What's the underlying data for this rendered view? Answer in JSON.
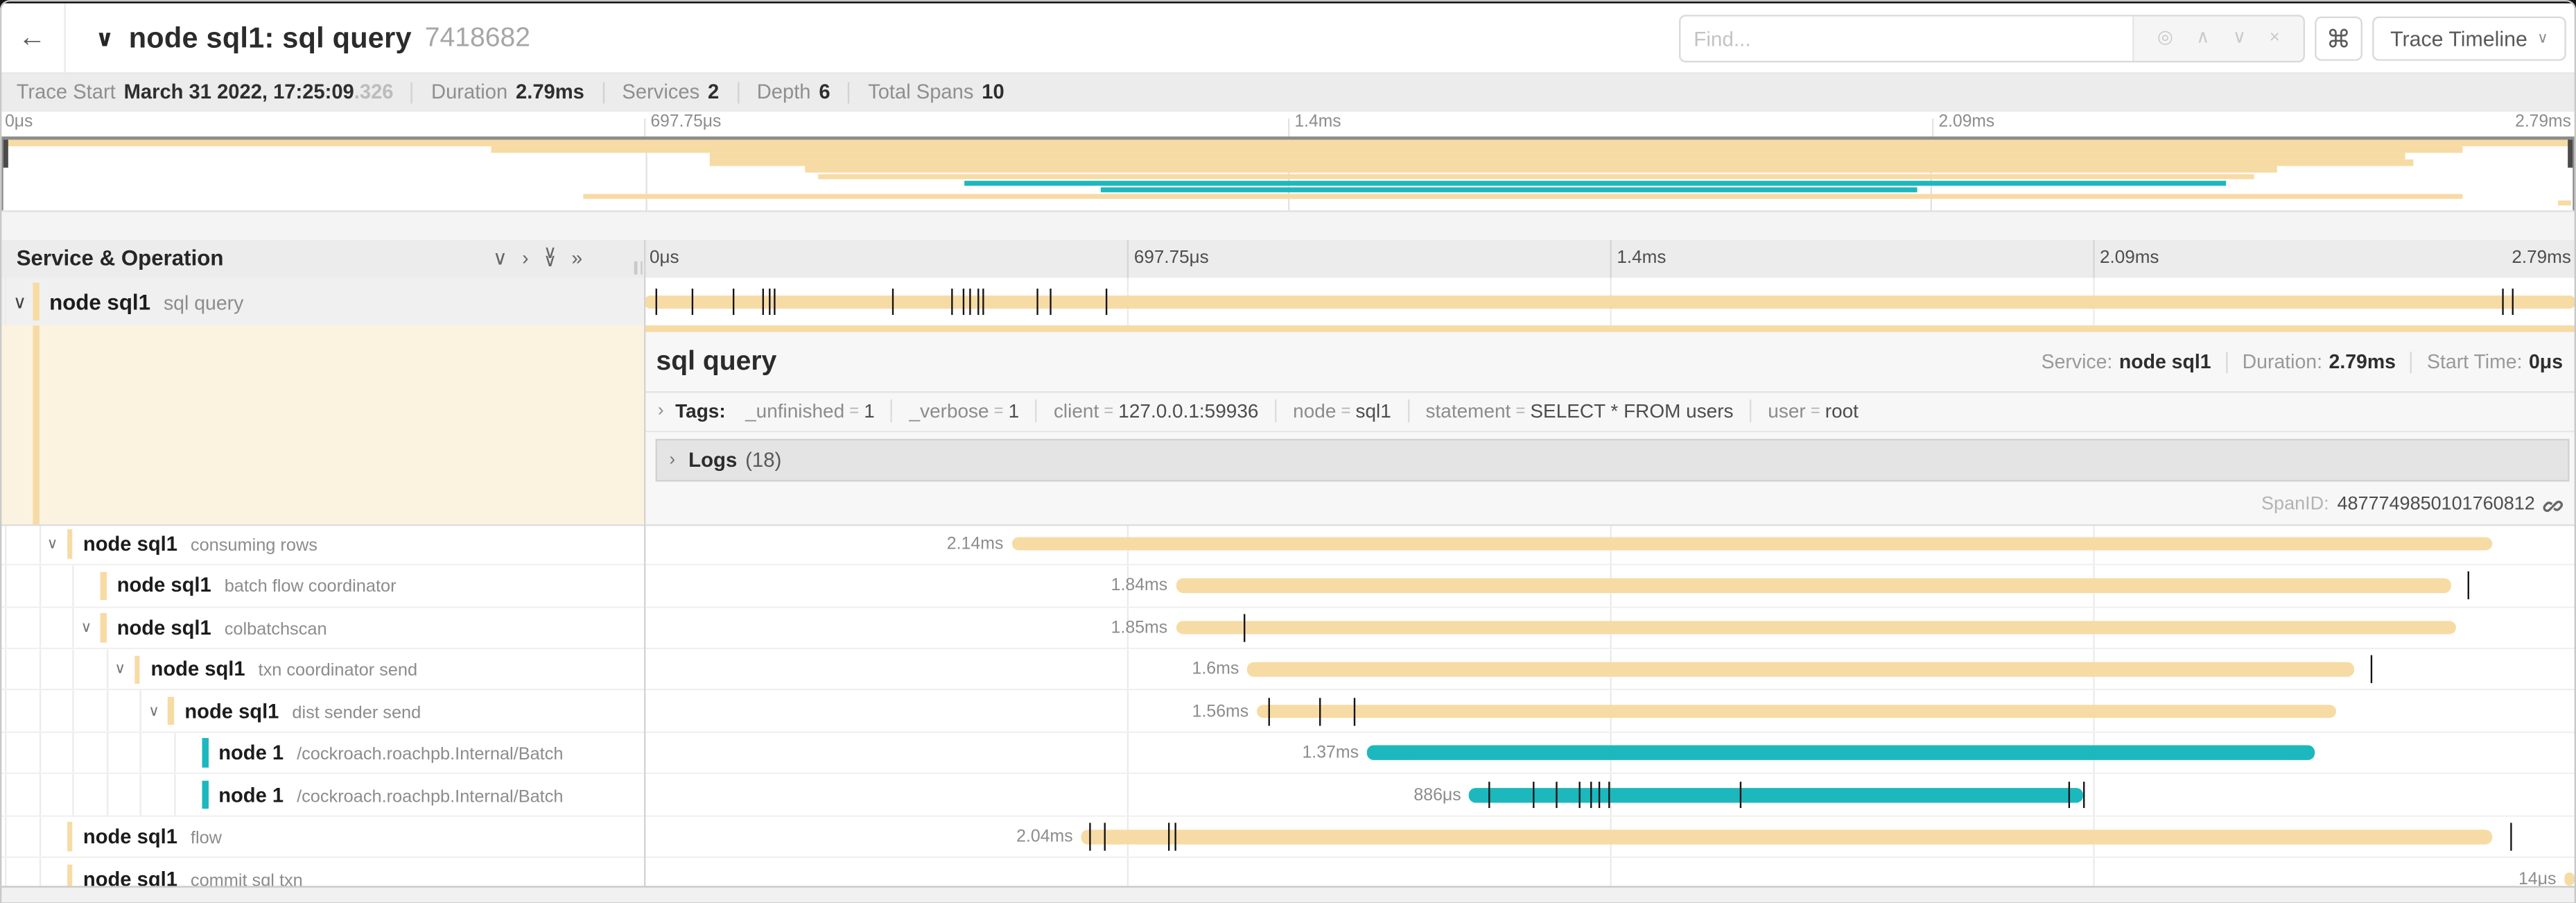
{
  "colors": {
    "tan": "#F7DBA4",
    "teal": "#1CB8BE",
    "selected_row_bg": "#F0F0F0",
    "detail_left_bg": "#FBF3DF",
    "detail_right_bg": "#F7F7F7"
  },
  "header": {
    "back_glyph": "←",
    "chevron_glyph": "∨",
    "title": "node sql1: sql query",
    "trace_id": "7418682",
    "shortcut_glyph": "⌘",
    "view_button_label": "Trace Timeline",
    "view_caret_glyph": "∨"
  },
  "find": {
    "placeholder": "Find...",
    "icons": [
      {
        "name": "locate-icon",
        "glyph": "◎"
      },
      {
        "name": "prev-result-icon",
        "glyph": "∧"
      },
      {
        "name": "next-result-icon",
        "glyph": "∨"
      },
      {
        "name": "clear-search-icon",
        "glyph": "×"
      }
    ]
  },
  "trace_info": {
    "items": [
      {
        "label": "Trace Start",
        "value": "March 31 2022, 17:25:09",
        "suffix": ".326"
      },
      {
        "label": "Duration",
        "value": "2.79ms"
      },
      {
        "label": "Services",
        "value": "2"
      },
      {
        "label": "Depth",
        "value": "6"
      },
      {
        "label": "Total Spans",
        "value": "10"
      }
    ]
  },
  "timeline": {
    "ticks": [
      {
        "pct": 0,
        "label": "0μs"
      },
      {
        "pct": 25,
        "label": "697.75μs"
      },
      {
        "pct": 50,
        "label": "1.4ms"
      },
      {
        "pct": 75,
        "label": "2.09ms"
      },
      {
        "pct": 100,
        "label": "2.79ms"
      }
    ]
  },
  "grid_header": {
    "title": "Service & Operation",
    "icons": [
      {
        "name": "expand-one-icon",
        "glyph": "∨"
      },
      {
        "name": "collapse-one-icon",
        "glyph": "›"
      },
      {
        "name": "expand-all-icon",
        "glyph": "∨∨"
      },
      {
        "name": "collapse-all-icon",
        "glyph": "»"
      }
    ]
  },
  "spans": [
    {
      "service": "node sql1",
      "operation": "sql query",
      "level": 0,
      "expandable": true,
      "color": "tan",
      "start": 0,
      "width": 100,
      "duration_label": "",
      "selected": true,
      "ticks": [
        0.6,
        2.4,
        4.6,
        6.1,
        6.4,
        6.7,
        12.8,
        15.9,
        16.5,
        16.8,
        17.2,
        17.5,
        20.3,
        21.0,
        23.9,
        96.2,
        96.7
      ]
    },
    {
      "service": "node sql1",
      "operation": "consuming rows",
      "level": 1,
      "expandable": true,
      "color": "tan",
      "start": 19.0,
      "width": 76.7,
      "duration_label": "2.14ms",
      "ticks": []
    },
    {
      "service": "node sql1",
      "operation": "batch flow coordinator",
      "level": 2,
      "expandable": false,
      "color": "tan",
      "start": 27.5,
      "width": 66.0,
      "duration_label": "1.84ms",
      "ticks": [
        94.4
      ]
    },
    {
      "service": "node sql1",
      "operation": "colbatchscan",
      "level": 2,
      "expandable": true,
      "color": "tan",
      "start": 27.5,
      "width": 66.3,
      "duration_label": "1.85ms",
      "ticks": [
        31.0
      ]
    },
    {
      "service": "node sql1",
      "operation": "txn coordinator send",
      "level": 3,
      "expandable": true,
      "color": "tan",
      "start": 31.2,
      "width": 57.3,
      "duration_label": "1.6ms",
      "ticks": [
        89.4
      ]
    },
    {
      "service": "node sql1",
      "operation": "dist sender send",
      "level": 4,
      "expandable": true,
      "color": "tan",
      "start": 31.7,
      "width": 55.9,
      "duration_label": "1.56ms",
      "ticks": [
        32.3,
        34.9,
        36.7
      ]
    },
    {
      "service": "node 1",
      "operation": "/cockroach.roachpb.Internal/Batch",
      "level": 5,
      "expandable": false,
      "color": "teal",
      "start": 37.4,
      "width": 49.1,
      "duration_label": "1.37ms",
      "ticks": []
    },
    {
      "service": "node 1",
      "operation": "/cockroach.roachpb.Internal/Batch",
      "level": 5,
      "expandable": false,
      "color": "teal",
      "start": 42.7,
      "width": 31.8,
      "duration_label": "886μs",
      "ticks": [
        43.7,
        46.0,
        47.2,
        48.4,
        49.0,
        49.4,
        49.9,
        56.7,
        73.7,
        74.5
      ]
    },
    {
      "service": "node sql1",
      "operation": "flow",
      "level": 1,
      "expandable": false,
      "color": "tan",
      "start": 22.6,
      "width": 73.1,
      "duration_label": "2.04ms",
      "ticks": [
        23.0,
        23.8,
        27.1,
        27.4,
        96.6
      ]
    },
    {
      "service": "node sql1",
      "operation": "commit sql txn",
      "level": 1,
      "expandable": false,
      "color": "tan",
      "start": 99.4,
      "width": 0.55,
      "duration_label": "14μs",
      "ticks": []
    }
  ],
  "detail": {
    "title": "sql query",
    "service_label": "Service:",
    "service": "node sql1",
    "duration_label": "Duration:",
    "duration": "2.79ms",
    "start_time_label": "Start Time:",
    "start_time": "0μs",
    "tags_chevron": "›",
    "tags_label": "Tags:",
    "tags": [
      {
        "key": "_unfinished",
        "value": "1"
      },
      {
        "key": "_verbose",
        "value": "1"
      },
      {
        "key": "client",
        "value": "127.0.0.1:59936"
      },
      {
        "key": "node",
        "value": "sql1"
      },
      {
        "key": "statement",
        "value": "SELECT * FROM users"
      },
      {
        "key": "user",
        "value": "root"
      }
    ],
    "logs_chevron": "›",
    "logs_label": "Logs",
    "logs_count": "(18)",
    "span_id_label": "SpanID:",
    "span_id": "4877749850101760812"
  }
}
